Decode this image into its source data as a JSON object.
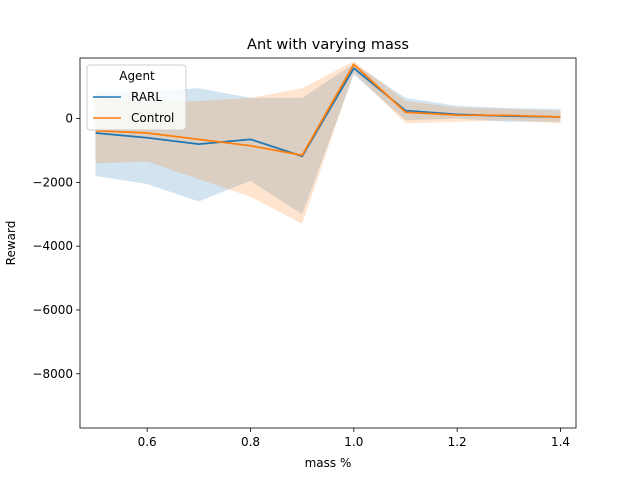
{
  "chart_data": {
    "type": "line",
    "title": "Ant with varying mass",
    "xlabel": "mass %",
    "ylabel": "Reward",
    "xlim": [
      0.47,
      1.43
    ],
    "ylim": [
      -9700,
      1900
    ],
    "xticks": [
      0.6,
      0.8,
      1.0,
      1.2,
      1.4
    ],
    "xtick_labels": [
      "0.6",
      "0.8",
      "1.0",
      "1.2",
      "1.4"
    ],
    "yticks": [
      -8000,
      -6000,
      -4000,
      -2000,
      0
    ],
    "ytick_labels": [
      "−8000",
      "−6000",
      "−4000",
      "−2000",
      "0"
    ],
    "grid": false,
    "legend": {
      "title": "Agent",
      "placement": "top-left"
    },
    "x": [
      0.5,
      0.6,
      0.7,
      0.8,
      0.9,
      1.0,
      1.1,
      1.2,
      1.3,
      1.4
    ],
    "series": [
      {
        "name": "RARL",
        "color": "#1f77b4",
        "values": [
          -450,
          -600,
          -800,
          -650,
          -1180,
          1580,
          250,
          130,
          80,
          50
        ],
        "lower": [
          -1800,
          -2050,
          -2600,
          -1950,
          -3000,
          1380,
          -50,
          0,
          -100,
          -100
        ],
        "upper": [
          850,
          850,
          950,
          650,
          650,
          1720,
          650,
          400,
          330,
          300
        ]
      },
      {
        "name": "Control",
        "color": "#ff7f0e",
        "values": [
          -380,
          -450,
          -650,
          -850,
          -1150,
          1700,
          200,
          110,
          100,
          50
        ],
        "lower": [
          -1400,
          -1350,
          -1900,
          -2450,
          -3300,
          1450,
          -150,
          -100,
          -50,
          -150
        ],
        "upper": [
          720,
          500,
          550,
          650,
          950,
          1800,
          550,
          350,
          300,
          250
        ]
      }
    ]
  }
}
